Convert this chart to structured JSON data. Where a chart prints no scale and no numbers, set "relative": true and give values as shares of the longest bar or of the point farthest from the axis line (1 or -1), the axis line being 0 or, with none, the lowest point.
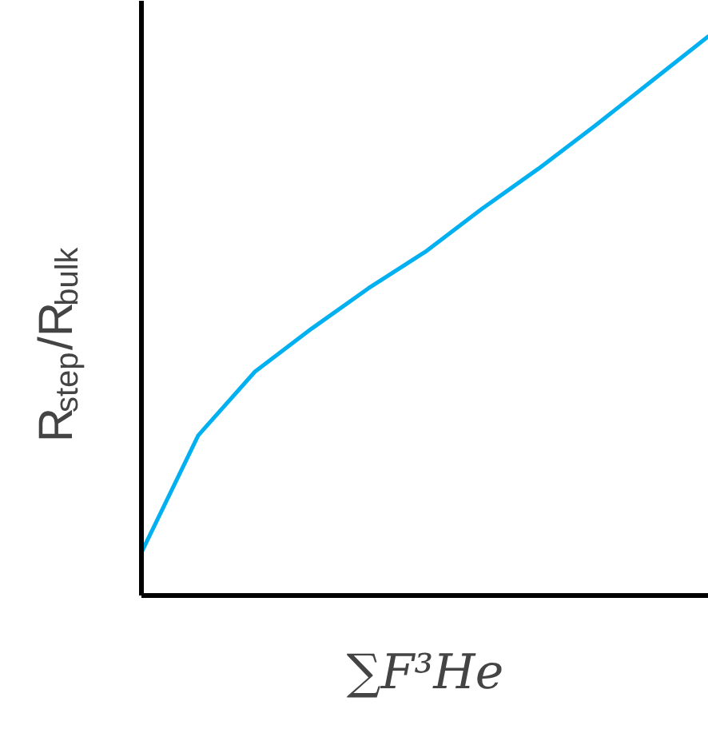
{
  "chart_data": {
    "type": "line",
    "relative": true,
    "xlabel": "∑F³He",
    "ylabel": "R$_{step}$/R$_{bulk}$",
    "categories": [
      null,
      null,
      null,
      null,
      null,
      null,
      null,
      null,
      null,
      null,
      null
    ],
    "series": [
      {
        "color": "#00b0f0",
        "values": [
          0.077,
          0.286,
          0.4,
          0.477,
          0.549,
          0.614,
          0.691,
          0.763,
          0.84,
          0.92,
          1.0
        ]
      }
    ]
  }
}
